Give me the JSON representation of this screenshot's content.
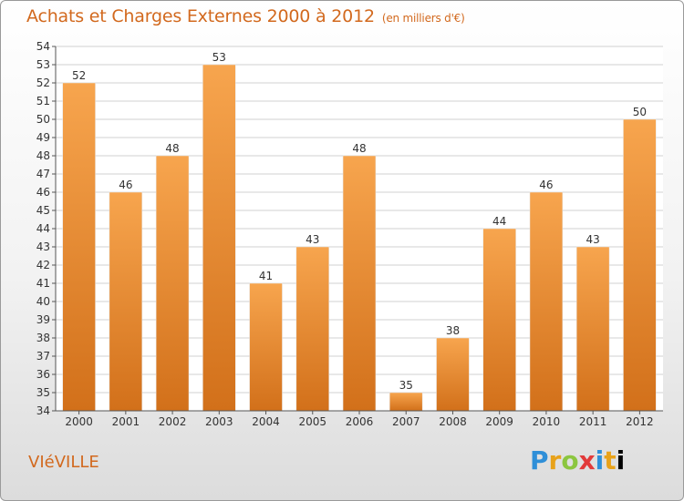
{
  "header": {
    "title": "Achats et Charges Externes 2000 à 2012",
    "unit": "(en milliers d'€)"
  },
  "footer": {
    "commune": "VIéVILLE",
    "logo": "Proxiti"
  },
  "colors": {
    "bar_light": "#f7a54e",
    "bar_dark": "#d2701a",
    "title": "#d2691e",
    "grid": "#d0d0d0",
    "axis": "#555555"
  },
  "chart_data": {
    "type": "bar",
    "categories": [
      "2000",
      "2001",
      "2002",
      "2003",
      "2004",
      "2005",
      "2006",
      "2007",
      "2008",
      "2009",
      "2010",
      "2011",
      "2012"
    ],
    "values": [
      52,
      46,
      48,
      53,
      41,
      43,
      48,
      35,
      38,
      44,
      46,
      43,
      50
    ],
    "title": "Achats et Charges Externes 2000 à 2012",
    "subtitle": "(en milliers d'€)",
    "ylim": [
      34,
      54
    ],
    "yticks": [
      34,
      35,
      36,
      37,
      38,
      39,
      40,
      41,
      42,
      43,
      44,
      45,
      46,
      47,
      48,
      49,
      50,
      51,
      52,
      53,
      54
    ],
    "grid": true,
    "legend": "none"
  }
}
